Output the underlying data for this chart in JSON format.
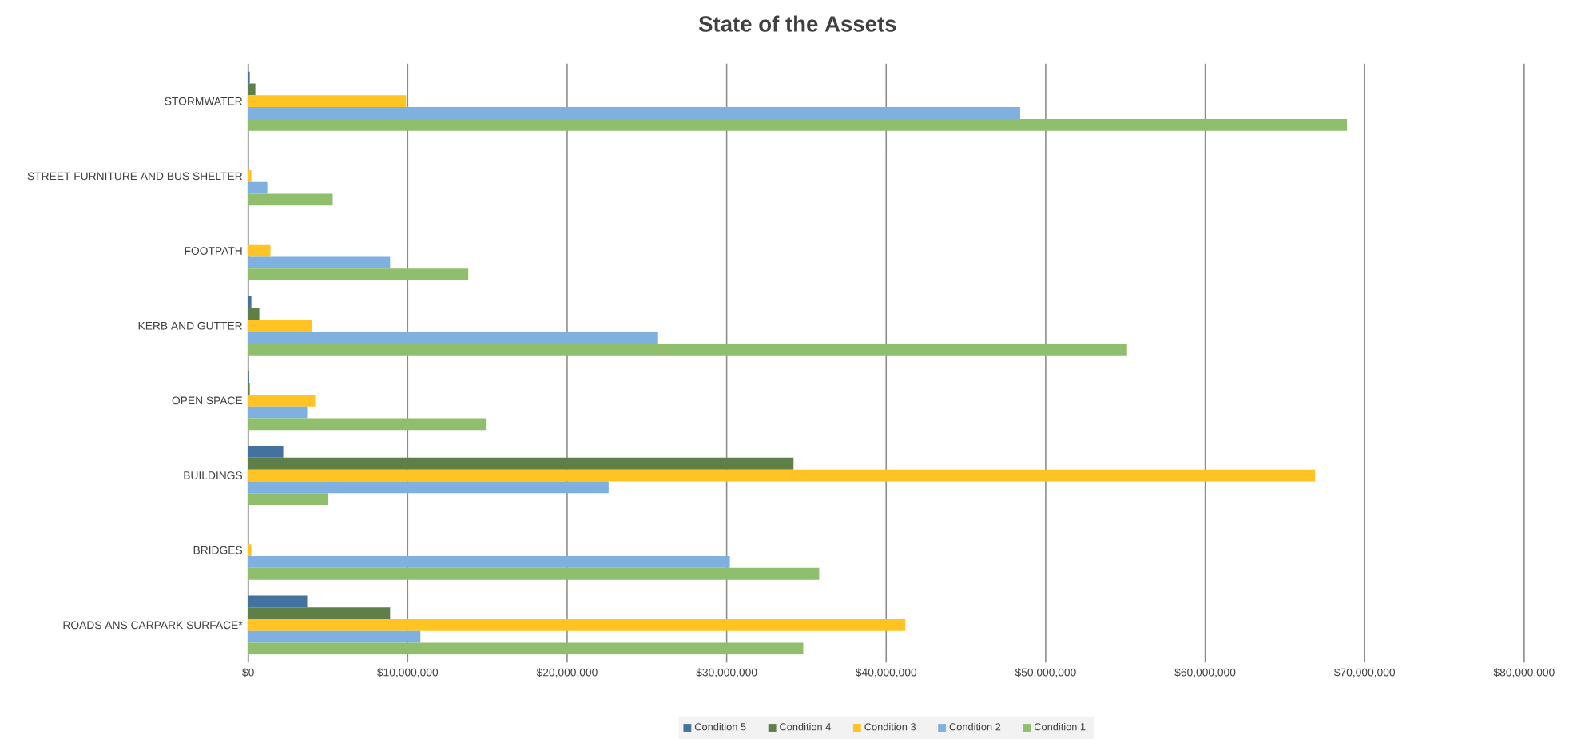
{
  "chart_data": {
    "type": "bar",
    "orientation": "horizontal",
    "title": "State of the Assets",
    "categories": [
      "STORMWATER",
      "STREET FURNITURE AND BUS SHELTER",
      "FOOTPATH",
      "KERB AND GUTTER",
      "OPEN SPACE",
      "BUILDINGS",
      "BRIDGES",
      "ROADS ANS CARPARK SURFACE*"
    ],
    "series": [
      {
        "name": "Condition 5",
        "color": "#44729e",
        "values": [
          100000,
          0,
          0,
          200000,
          60000,
          2200000,
          0,
          3700000
        ]
      },
      {
        "name": "Condition 4",
        "color": "#5e8048",
        "values": [
          450000,
          0,
          0,
          700000,
          100000,
          34200000,
          0,
          8900000
        ]
      },
      {
        "name": "Condition 3",
        "color": "#ffc324",
        "values": [
          9900000,
          200000,
          1400000,
          4000000,
          4200000,
          66900000,
          200000,
          41200000
        ]
      },
      {
        "name": "Condition 2",
        "color": "#7eb0e0",
        "values": [
          48400000,
          1200000,
          8900000,
          25700000,
          3700000,
          22600000,
          30200000,
          10800000
        ]
      },
      {
        "name": "Condition 1",
        "color": "#8fbf6c",
        "values": [
          68900000,
          5300000,
          13800000,
          55100000,
          14900000,
          5000000,
          35800000,
          34800000
        ]
      }
    ],
    "xlim": [
      0,
      80000000
    ],
    "xticks": [
      {
        "value": 0,
        "label": "$0"
      },
      {
        "value": 10000000,
        "label": "$10,000,000"
      },
      {
        "value": 20000000,
        "label": "$20,000,000"
      },
      {
        "value": 30000000,
        "label": "$30,000,000"
      },
      {
        "value": 40000000,
        "label": "$40,000,000"
      },
      {
        "value": 50000000,
        "label": "$50,000,000"
      },
      {
        "value": 60000000,
        "label": "$60,000,000"
      },
      {
        "value": 70000000,
        "label": "$70,000,000"
      },
      {
        "value": 80000000,
        "label": "$80,000,000"
      }
    ],
    "grid": "x",
    "legend": "bottom"
  }
}
